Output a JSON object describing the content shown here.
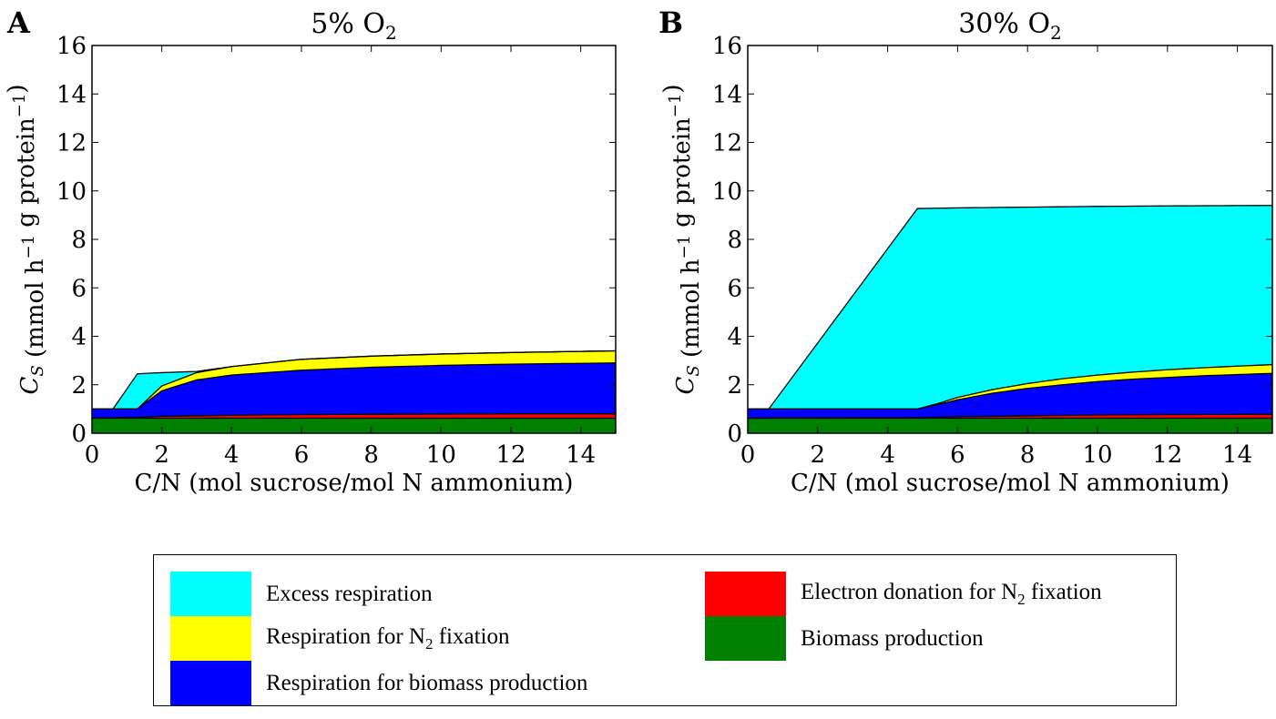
{
  "colors": {
    "excess": "#00ffff",
    "resp_n2": "#ffff00",
    "resp_biomass": "#0000ff",
    "electron": "#ff0000",
    "biomass": "#008000"
  },
  "legend": [
    {
      "label": "Excess respiration",
      "color": "#00ffff"
    },
    {
      "label": "Respiration for N2 fixation",
      "color": "#ffff00"
    },
    {
      "label": "Respiration for biomass production",
      "color": "#0000ff"
    },
    {
      "label": "Electron donation for N2 fixation",
      "color": "#ff0000"
    },
    {
      "label": "Biomass production",
      "color": "#008000"
    }
  ],
  "chart_data": [
    {
      "panel_letter": "A",
      "type": "area",
      "title": "5% O2",
      "xlabel": "C/N (mol sucrose/mol N ammonium)",
      "ylabel": "CS (mmol h−1 g protein−1)",
      "xlim": [
        0,
        15
      ],
      "ylim": [
        0,
        16
      ],
      "xticks": [
        0,
        2,
        4,
        6,
        8,
        10,
        12,
        14
      ],
      "yticks": [
        0,
        2,
        4,
        6,
        8,
        10,
        12,
        14,
        16
      ],
      "stack_order": [
        "Biomass production",
        "Electron donation for N2 fixation",
        "Respiration for biomass production",
        "Respiration for N2 fixation",
        "Excess respiration"
      ],
      "boundaries": [
        {
          "name": "Biomass production (top)",
          "x": [
            0,
            15
          ],
          "y": [
            0.62,
            0.62
          ]
        },
        {
          "name": "Electron donation for N2 fixation (top)",
          "x": [
            0,
            1.3,
            2,
            4,
            6,
            8,
            10,
            12,
            15
          ],
          "y": [
            0.62,
            0.65,
            0.7,
            0.74,
            0.77,
            0.78,
            0.79,
            0.8,
            0.8
          ]
        },
        {
          "name": "Respiration for biomass production (top)",
          "x": [
            0,
            0.6,
            1.3,
            2,
            3,
            4,
            6,
            8,
            10,
            12,
            15
          ],
          "y": [
            1.0,
            1.0,
            1.0,
            1.75,
            2.2,
            2.4,
            2.6,
            2.72,
            2.8,
            2.85,
            2.9
          ]
        },
        {
          "name": "Respiration for N2 fixation (top)",
          "x": [
            0,
            0.6,
            1.3,
            2,
            3,
            4,
            6,
            8,
            10,
            12,
            15
          ],
          "y": [
            1.0,
            1.0,
            1.0,
            1.95,
            2.5,
            2.75,
            3.05,
            3.18,
            3.27,
            3.33,
            3.4
          ]
        },
        {
          "name": "Excess respiration (top)",
          "x": [
            0,
            0.6,
            1.3,
            2,
            3,
            4,
            6,
            8,
            10,
            12,
            15
          ],
          "y": [
            1.0,
            1.0,
            2.45,
            2.5,
            2.55,
            2.75,
            3.05,
            3.18,
            3.27,
            3.33,
            3.4
          ]
        }
      ]
    },
    {
      "panel_letter": "B",
      "type": "area",
      "title": "30% O2",
      "xlabel": "C/N (mol sucrose/mol N ammonium)",
      "ylabel": "CS (mmol h−1 g protein−1)",
      "xlim": [
        0,
        15
      ],
      "ylim": [
        0,
        16
      ],
      "xticks": [
        0,
        2,
        4,
        6,
        8,
        10,
        12,
        14
      ],
      "yticks": [
        0,
        2,
        4,
        6,
        8,
        10,
        12,
        14,
        16
      ],
      "stack_order": [
        "Biomass production",
        "Electron donation for N2 fixation",
        "Respiration for biomass production",
        "Respiration for N2 fixation",
        "Excess respiration"
      ],
      "boundaries": [
        {
          "name": "Biomass production (top)",
          "x": [
            0,
            15
          ],
          "y": [
            0.62,
            0.62
          ]
        },
        {
          "name": "Electron donation for N2 fixation (top)",
          "x": [
            0,
            4.85,
            6,
            8,
            10,
            12,
            15
          ],
          "y": [
            0.62,
            0.64,
            0.68,
            0.72,
            0.75,
            0.77,
            0.78
          ]
        },
        {
          "name": "Respiration for biomass production (top)",
          "x": [
            0,
            0.6,
            4.85,
            5.5,
            6,
            7,
            8,
            9,
            10,
            11,
            12,
            13,
            14,
            15
          ],
          "y": [
            1.0,
            1.0,
            1.0,
            1.2,
            1.38,
            1.65,
            1.85,
            2.0,
            2.13,
            2.23,
            2.3,
            2.37,
            2.42,
            2.47
          ]
        },
        {
          "name": "Respiration for N2 fixation (top)",
          "x": [
            0,
            0.6,
            4.85,
            5.5,
            6,
            7,
            8,
            9,
            10,
            11,
            12,
            13,
            14,
            15
          ],
          "y": [
            1.0,
            1.0,
            1.0,
            1.25,
            1.48,
            1.8,
            2.05,
            2.25,
            2.4,
            2.52,
            2.62,
            2.7,
            2.77,
            2.83
          ]
        },
        {
          "name": "Excess respiration (top)",
          "x": [
            0,
            0.6,
            4.85,
            6,
            8,
            10,
            12,
            15
          ],
          "y": [
            1.0,
            1.0,
            9.27,
            9.3,
            9.33,
            9.36,
            9.38,
            9.4
          ]
        }
      ]
    }
  ]
}
